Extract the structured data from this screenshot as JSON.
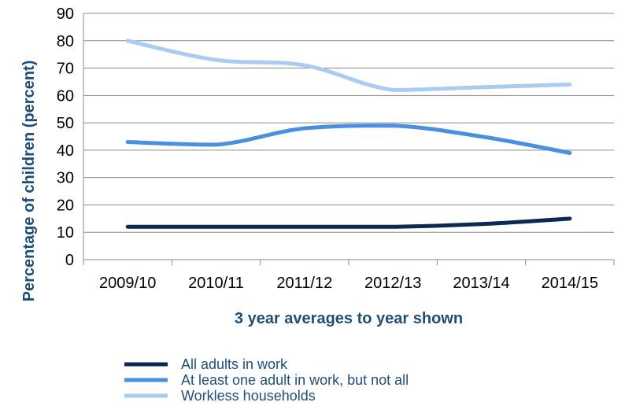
{
  "chart_data": {
    "type": "line",
    "categories": [
      "2009/10",
      "2010/11",
      "2011/12",
      "2012/13",
      "2013/14",
      "2014/15"
    ],
    "series": [
      {
        "name": "All adults in work",
        "values": [
          12,
          12,
          12,
          12,
          13,
          15
        ],
        "color": "#0b2a52"
      },
      {
        "name": "At least one adult in work, but not all",
        "values": [
          43,
          42,
          48,
          49,
          45,
          39
        ],
        "color": "#4a8fe0"
      },
      {
        "name": "Workless households",
        "values": [
          80,
          73,
          71,
          62,
          63,
          64
        ],
        "color": "#a9cdf2"
      }
    ],
    "title": "",
    "xlabel": "3 year averages to year shown",
    "ylabel": "Percentage of children (percent)",
    "ylim": [
      0,
      90
    ],
    "yticks": [
      0,
      10,
      20,
      30,
      40,
      50,
      60,
      70,
      80,
      90
    ],
    "grid": "horizontal",
    "legend_position": "bottom"
  },
  "colors": {
    "grid": "#8c8c8c",
    "axis_title": "#1f4e79"
  }
}
